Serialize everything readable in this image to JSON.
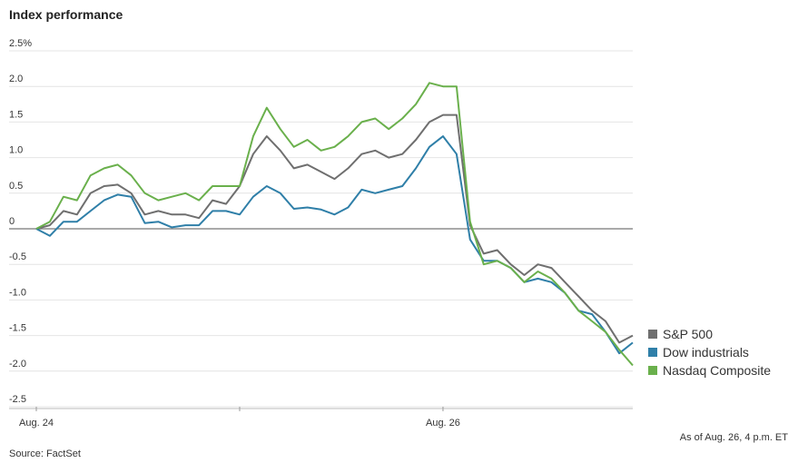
{
  "chart_data": {
    "type": "line",
    "title": "Index performance",
    "source": "Source: FactSet",
    "note": "As of Aug. 26, 4 p.m. ET",
    "categories": [
      "Aug. 24",
      null,
      null,
      null,
      null,
      null,
      null,
      null,
      null,
      null,
      null,
      null,
      null,
      null,
      null,
      null,
      null,
      null,
      null,
      null,
      null,
      null,
      null,
      null,
      null,
      null,
      null,
      null,
      null,
      null,
      "Aug. 26",
      null,
      null,
      null,
      null,
      null,
      null,
      null,
      null,
      null,
      null,
      null,
      null,
      null,
      null
    ],
    "ylim": [
      -2.5,
      2.5
    ],
    "yticks": [
      {
        "value": 2.5,
        "label": "2.5%"
      },
      {
        "value": 2,
        "label": "2.0"
      },
      1.5,
      {
        "value": 1,
        "label": "1.0"
      },
      0.5,
      0,
      -0.5,
      {
        "value": -1,
        "label": "-1.0"
      },
      -1.5,
      {
        "value": -2,
        "label": "-2.0"
      },
      -2.5
    ],
    "grid": true,
    "legend": "right",
    "series": [
      {
        "name": "S&P 500",
        "color": "#6f6f6f",
        "values": [
          0,
          0.05,
          0.25,
          0.2,
          0.5,
          0.6,
          0.62,
          0.5,
          0.2,
          0.25,
          0.2,
          0.2,
          0.15,
          0.4,
          0.35,
          0.6,
          1.05,
          1.3,
          1.1,
          0.85,
          0.9,
          0.8,
          0.7,
          0.85,
          1.05,
          1.1,
          1.0,
          1.05,
          1.25,
          1.5,
          1.6,
          1.6,
          0.05,
          -0.35,
          -0.3,
          -0.5,
          -0.65,
          -0.5,
          -0.55,
          -0.75,
          -0.95,
          -1.15,
          -1.3,
          -1.6,
          -1.5
        ]
      },
      {
        "name": "Dow industrials",
        "color": "#2f7fa8",
        "values": [
          0,
          -0.1,
          0.1,
          0.1,
          0.25,
          0.4,
          0.48,
          0.45,
          0.08,
          0.1,
          0.02,
          0.05,
          0.05,
          0.25,
          0.25,
          0.2,
          0.45,
          0.6,
          0.5,
          0.28,
          0.3,
          0.27,
          0.2,
          0.3,
          0.55,
          0.5,
          0.55,
          0.6,
          0.85,
          1.15,
          1.3,
          1.05,
          -0.15,
          -0.45,
          -0.45,
          -0.55,
          -0.75,
          -0.7,
          -0.75,
          -0.9,
          -1.15,
          -1.2,
          -1.45,
          -1.75,
          -1.6
        ]
      },
      {
        "name": "Nasdaq Composite",
        "color": "#6ab04c",
        "values": [
          0,
          0.1,
          0.45,
          0.4,
          0.75,
          0.85,
          0.9,
          0.75,
          0.5,
          0.4,
          0.45,
          0.5,
          0.4,
          0.6,
          0.6,
          0.6,
          1.3,
          1.7,
          1.4,
          1.15,
          1.25,
          1.1,
          1.15,
          1.3,
          1.5,
          1.55,
          1.4,
          1.55,
          1.75,
          2.05,
          2.0,
          2.0,
          0.1,
          -0.5,
          -0.45,
          -0.55,
          -0.75,
          -0.6,
          -0.7,
          -0.9,
          -1.15,
          -1.3,
          -1.45,
          -1.7,
          -1.92
        ]
      }
    ]
  }
}
